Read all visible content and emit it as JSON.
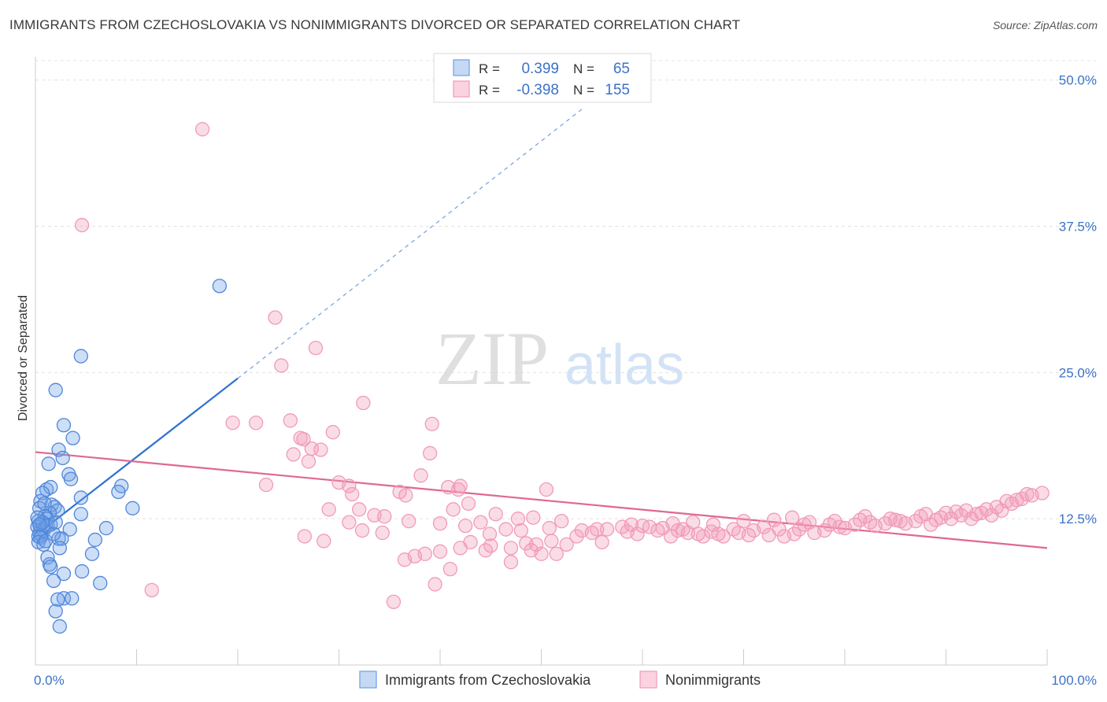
{
  "title": "IMMIGRANTS FROM CZECHOSLOVAKIA VS NONIMMIGRANTS DIVORCED OR SEPARATED CORRELATION CHART",
  "source": "Source: ZipAtlas.com",
  "watermark": {
    "zip": "ZIP",
    "atlas": "atlas"
  },
  "legend_top": {
    "rows": [
      {
        "r_label": "R =",
        "r_value": "0.399",
        "n_label": "N =",
        "n_value": "65",
        "color": "#6fa0e8"
      },
      {
        "r_label": "R =",
        "r_value": "-0.398",
        "n_label": "N =",
        "n_value": "155",
        "color": "#f19bb6"
      }
    ]
  },
  "legend_bottom": [
    {
      "label": "Immigrants from Czechoslovakia",
      "color": "#6fa0e8"
    },
    {
      "label": "Nonimmigrants",
      "color": "#f19bb6"
    }
  ],
  "chart_data": {
    "type": "scatter",
    "title": "IMMIGRANTS FROM CZECHOSLOVAKIA VS NONIMMIGRANTS DIVORCED OR SEPARATED CORRELATION CHART",
    "xlabel": "",
    "ylabel": "Divorced or Separated",
    "xlim": [
      0,
      100
    ],
    "ylim": [
      0,
      52
    ],
    "x_tick_labels": [
      "0.0%",
      "100.0%"
    ],
    "y_ticks": [
      12.5,
      25.0,
      37.5,
      50.0
    ],
    "y_tick_labels": [
      "12.5%",
      "25.0%",
      "37.5%",
      "50.0%"
    ],
    "grid": true,
    "legend_position": "top-center",
    "colors": {
      "blue": "#6fa0e8",
      "blue_line": "#2f72d0",
      "pink": "#f19bb6",
      "pink_line": "#e06890"
    },
    "series": [
      {
        "name": "Immigrants from Czechoslovakia",
        "color": "#6fa0e8",
        "trend": {
          "x0": 0.5,
          "y0": 11.4,
          "x1": 20,
          "y1": 24.5,
          "dashed_to_x": 54,
          "dashed_to_y": 47.5
        },
        "points": [
          [
            18.2,
            32.4
          ],
          [
            4.5,
            26.4
          ],
          [
            2.0,
            23.5
          ],
          [
            2.8,
            20.5
          ],
          [
            3.7,
            19.4
          ],
          [
            2.3,
            18.4
          ],
          [
            2.7,
            17.7
          ],
          [
            1.3,
            17.2
          ],
          [
            3.3,
            16.3
          ],
          [
            3.5,
            15.9
          ],
          [
            1.1,
            15.0
          ],
          [
            8.5,
            15.3
          ],
          [
            8.2,
            14.8
          ],
          [
            1.5,
            15.2
          ],
          [
            0.7,
            14.7
          ],
          [
            4.5,
            14.3
          ],
          [
            0.5,
            14.0
          ],
          [
            1.6,
            13.7
          ],
          [
            1.9,
            13.5
          ],
          [
            0.4,
            13.4
          ],
          [
            2.2,
            13.2
          ],
          [
            1.4,
            13.0
          ],
          [
            9.6,
            13.4
          ],
          [
            4.5,
            12.9
          ],
          [
            0.9,
            12.7
          ],
          [
            1.1,
            12.5
          ],
          [
            0.3,
            12.3
          ],
          [
            0.6,
            12.1
          ],
          [
            1.5,
            12.0
          ],
          [
            1.0,
            11.9
          ],
          [
            0.2,
            11.8
          ],
          [
            7.0,
            11.7
          ],
          [
            3.4,
            11.6
          ],
          [
            0.8,
            11.5
          ],
          [
            0.4,
            11.3
          ],
          [
            0.6,
            11.1
          ],
          [
            0.3,
            11.0
          ],
          [
            0.5,
            10.9
          ],
          [
            2.3,
            10.8
          ],
          [
            2.6,
            10.8
          ],
          [
            5.9,
            10.7
          ],
          [
            0.3,
            10.5
          ],
          [
            0.8,
            10.3
          ],
          [
            2.4,
            10.0
          ],
          [
            5.6,
            9.5
          ],
          [
            1.2,
            9.2
          ],
          [
            1.4,
            8.6
          ],
          [
            1.5,
            8.4
          ],
          [
            4.6,
            8.0
          ],
          [
            2.8,
            7.8
          ],
          [
            1.8,
            7.2
          ],
          [
            6.4,
            7.0
          ],
          [
            2.8,
            5.7
          ],
          [
            3.6,
            5.7
          ],
          [
            2.2,
            5.6
          ],
          [
            2.0,
            4.6
          ],
          [
            2.4,
            3.3
          ],
          [
            1.2,
            11.9
          ],
          [
            0.7,
            12.2
          ],
          [
            1.0,
            10.6
          ],
          [
            0.2,
            12.6
          ],
          [
            0.9,
            13.8
          ],
          [
            1.8,
            11.2
          ],
          [
            0.4,
            12.0
          ],
          [
            2.0,
            12.2
          ]
        ]
      },
      {
        "name": "Nonimmigrants",
        "color": "#f19bb6",
        "trend": {
          "x0": 0,
          "y0": 18.2,
          "x1": 100,
          "y1": 10.0
        },
        "points": [
          [
            16.5,
            45.8
          ],
          [
            4.6,
            37.6
          ],
          [
            23.7,
            29.7
          ],
          [
            27.7,
            27.1
          ],
          [
            24.3,
            25.6
          ],
          [
            32.4,
            22.4
          ],
          [
            19.5,
            20.7
          ],
          [
            21.8,
            20.7
          ],
          [
            25.2,
            20.9
          ],
          [
            29.4,
            19.9
          ],
          [
            39.2,
            20.6
          ],
          [
            26.2,
            19.4
          ],
          [
            26.5,
            19.3
          ],
          [
            27.3,
            18.5
          ],
          [
            28.2,
            18.4
          ],
          [
            39.0,
            18.1
          ],
          [
            25.5,
            18.0
          ],
          [
            27.0,
            17.4
          ],
          [
            38.1,
            16.2
          ],
          [
            22.8,
            15.4
          ],
          [
            30.0,
            15.6
          ],
          [
            31.0,
            15.3
          ],
          [
            42.0,
            15.3
          ],
          [
            40.8,
            15.2
          ],
          [
            41.8,
            15.0
          ],
          [
            36.0,
            14.8
          ],
          [
            31.3,
            14.6
          ],
          [
            36.6,
            14.5
          ],
          [
            50.5,
            15.0
          ],
          [
            29.0,
            13.3
          ],
          [
            41.3,
            13.3
          ],
          [
            33.5,
            12.8
          ],
          [
            34.5,
            12.7
          ],
          [
            45.5,
            12.9
          ],
          [
            36.9,
            12.3
          ],
          [
            44.0,
            12.2
          ],
          [
            40.0,
            12.1
          ],
          [
            42.5,
            11.9
          ],
          [
            47.7,
            12.5
          ],
          [
            52.0,
            12.3
          ],
          [
            49.2,
            12.6
          ],
          [
            46.5,
            11.6
          ],
          [
            48.0,
            11.5
          ],
          [
            50.8,
            11.7
          ],
          [
            54.0,
            11.5
          ],
          [
            55.0,
            11.3
          ],
          [
            58.5,
            11.4
          ],
          [
            60.0,
            11.9
          ],
          [
            62.0,
            11.7
          ],
          [
            63.5,
            11.5
          ],
          [
            64.5,
            11.3
          ],
          [
            65.5,
            11.2
          ],
          [
            66.8,
            11.4
          ],
          [
            68.0,
            11.0
          ],
          [
            69.5,
            11.3
          ],
          [
            71.0,
            11.5
          ],
          [
            72.5,
            11.1
          ],
          [
            73.5,
            11.6
          ],
          [
            75.0,
            11.2
          ],
          [
            76.5,
            12.2
          ],
          [
            78.0,
            11.5
          ],
          [
            79.5,
            11.8
          ],
          [
            81.0,
            12.0
          ],
          [
            82.5,
            12.2
          ],
          [
            84.0,
            12.1
          ],
          [
            85.5,
            12.3
          ],
          [
            87.0,
            12.3
          ],
          [
            88.5,
            12.0
          ],
          [
            89.5,
            12.6
          ],
          [
            90.5,
            12.5
          ],
          [
            91.5,
            12.8
          ],
          [
            92.5,
            12.5
          ],
          [
            93.5,
            13.0
          ],
          [
            94.5,
            12.8
          ],
          [
            95.5,
            13.2
          ],
          [
            96.5,
            13.8
          ],
          [
            97.5,
            14.2
          ],
          [
            98.5,
            14.5
          ],
          [
            99.5,
            14.7
          ],
          [
            95.0,
            13.5
          ],
          [
            93.0,
            12.9
          ],
          [
            91.0,
            13.1
          ],
          [
            89.0,
            12.4
          ],
          [
            87.5,
            12.7
          ],
          [
            86.0,
            12.1
          ],
          [
            84.5,
            12.5
          ],
          [
            83.0,
            11.9
          ],
          [
            81.5,
            12.4
          ],
          [
            80.0,
            11.7
          ],
          [
            78.5,
            12.0
          ],
          [
            77.0,
            11.3
          ],
          [
            75.5,
            11.6
          ],
          [
            74.0,
            11.0
          ],
          [
            72.0,
            11.8
          ],
          [
            70.5,
            11.1
          ],
          [
            69.0,
            11.6
          ],
          [
            67.5,
            11.2
          ],
          [
            66.0,
            11.0
          ],
          [
            64.0,
            11.6
          ],
          [
            62.8,
            11.0
          ],
          [
            61.5,
            11.5
          ],
          [
            59.5,
            11.2
          ],
          [
            58.0,
            11.8
          ],
          [
            56.0,
            10.5
          ],
          [
            55.5,
            11.6
          ],
          [
            53.5,
            11.0
          ],
          [
            52.5,
            10.3
          ],
          [
            51.0,
            10.6
          ],
          [
            49.5,
            10.3
          ],
          [
            48.5,
            10.4
          ],
          [
            47.0,
            10.0
          ],
          [
            45.0,
            10.2
          ],
          [
            44.5,
            9.8
          ],
          [
            43.0,
            10.5
          ],
          [
            42.0,
            10.0
          ],
          [
            40.0,
            9.7
          ],
          [
            38.5,
            9.5
          ],
          [
            37.5,
            9.3
          ],
          [
            36.5,
            9.0
          ],
          [
            47.0,
            8.8
          ],
          [
            50.0,
            9.5
          ],
          [
            51.5,
            9.5
          ],
          [
            49.0,
            9.8
          ],
          [
            41.0,
            8.2
          ],
          [
            39.5,
            6.9
          ],
          [
            31.0,
            12.2
          ],
          [
            32.3,
            11.5
          ],
          [
            28.5,
            10.6
          ],
          [
            26.6,
            11.0
          ],
          [
            42.8,
            13.8
          ],
          [
            44.9,
            11.2
          ],
          [
            56.5,
            11.6
          ],
          [
            58.9,
            12.0
          ],
          [
            60.7,
            11.8
          ],
          [
            63.0,
            12.1
          ],
          [
            65.0,
            12.2
          ],
          [
            67.0,
            12.0
          ],
          [
            70.0,
            12.3
          ],
          [
            73.0,
            12.4
          ],
          [
            74.8,
            12.6
          ],
          [
            76.0,
            12.0
          ],
          [
            79.0,
            12.3
          ],
          [
            82.0,
            12.7
          ],
          [
            85.0,
            12.4
          ],
          [
            88.0,
            12.9
          ],
          [
            90.0,
            13.0
          ],
          [
            92.0,
            13.2
          ],
          [
            94.0,
            13.3
          ],
          [
            96.0,
            14.0
          ],
          [
            97.0,
            14.1
          ],
          [
            98.0,
            14.6
          ],
          [
            34.3,
            11.3
          ],
          [
            35.4,
            5.4
          ],
          [
            11.5,
            6.4
          ],
          [
            32.0,
            13.3
          ]
        ]
      }
    ]
  }
}
